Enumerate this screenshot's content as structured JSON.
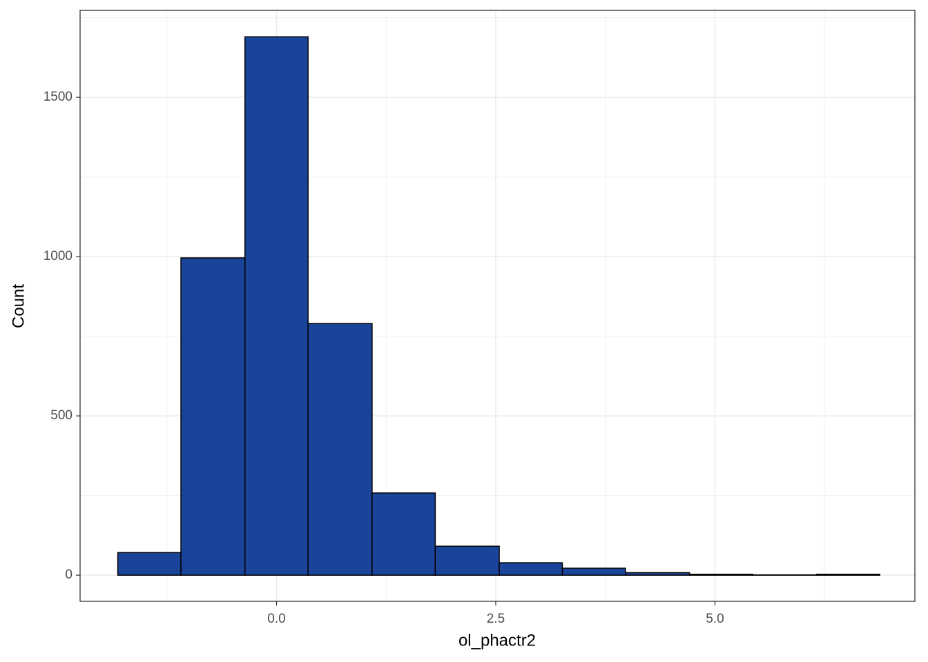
{
  "chart_data": {
    "type": "histogram",
    "x_label": "ol_phactr2",
    "y_label": "Count",
    "bins": [
      -1.81,
      -1.09,
      -0.36,
      0.36,
      1.09,
      1.81,
      2.54,
      3.26,
      3.98,
      4.71,
      5.43,
      6.16,
      6.88
    ],
    "values": [
      71,
      996,
      1690,
      790,
      258,
      91,
      39,
      22,
      8,
      3,
      1,
      3
    ],
    "color": "#1a4499",
    "edge_color": "#000000",
    "xlim": [
      -2.24,
      7.28
    ],
    "ylim": [
      -82,
      1773
    ],
    "xticks": [
      {
        "value": 0,
        "label": "0.0"
      },
      2.5,
      {
        "value": 5,
        "label": "5.0"
      }
    ],
    "yticks": [
      0,
      500,
      1000,
      1500
    ],
    "grid": true
  }
}
